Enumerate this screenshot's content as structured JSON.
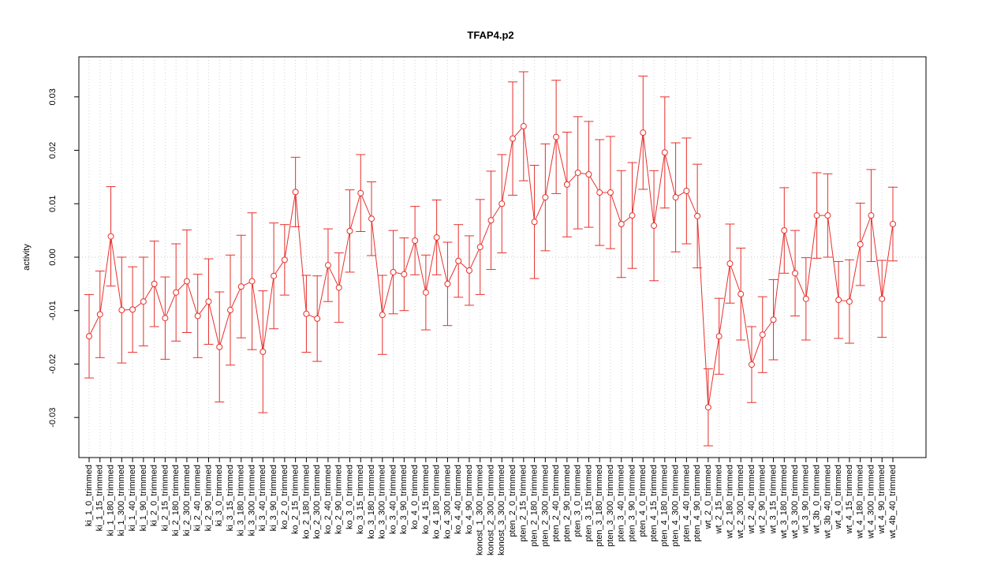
{
  "chart_data": {
    "type": "line",
    "title": "TFAP4.p2",
    "y_label": "activity",
    "categories": [
      "ki_1_0_trimmed",
      "ki_1_15_trimmed",
      "ki_1_180_trimmed",
      "ki_1_300_trimmed",
      "ki_1_40_trimmed",
      "ki_1_90_trimmed",
      "ki_2_0_trimmed",
      "ki_2_15_trimmed",
      "ki_2_180_trimmed",
      "ki_2_300_trimmed",
      "ki_2_40_trimmed",
      "ki_2_90_trimmed",
      "ki_3_0_trimmed",
      "ki_3_15_trimmed",
      "ki_3_180_trimmed",
      "ki_3_300_trimmed",
      "ki_3_40_trimmed",
      "ki_3_90_trimmed",
      "ko_2_0_trimmed",
      "ko_2_15_trimmed",
      "ko_2_180_trimmed",
      "ko_2_300_trimmed",
      "ko_2_40_trimmed",
      "ko_2_90_trimmed",
      "ko_3_0_trimmed",
      "ko_3_15_trimmed",
      "ko_3_180_trimmed",
      "ko_3_300_trimmed",
      "ko_3_40_trimmed",
      "ko_3_90_trimmed",
      "ko_4_0_trimmed",
      "ko_4_15_trimmed",
      "ko_4_180_trimmed",
      "ko_4_300_trimmed",
      "ko_4_40_trimmed",
      "ko_4_90_trimmed",
      "konost_1_300_trimmed",
      "konost_2_300_trimmed",
      "konost_3_300_trimmed",
      "pten_2_0_trimmed",
      "pten_2_15_trimmed",
      "pten_2_180_trimmed",
      "pten_2_300_trimmed",
      "pten_2_40_trimmed",
      "pten_2_90_trimmed",
      "pten_3_0_trimmed",
      "pten_3_15_trimmed",
      "pten_3_180_trimmed",
      "pten_3_300_trimmed",
      "pten_3_40_trimmed",
      "pten_3_90_trimmed",
      "pten_4_0_trimmed",
      "pten_4_15_trimmed",
      "pten_4_180_trimmed",
      "pten_4_300_trimmed",
      "pten_4_40_trimmed",
      "pten_4_90_trimmed",
      "wt_2_0_trimmed",
      "wt_2_15_trimmed",
      "wt_2_180_trimmed",
      "wt_2_300_trimmed",
      "wt_2_40_trimmed",
      "wt_2_90_trimmed",
      "wt_3_15_trimmed",
      "wt_3_180_trimmed",
      "wt_3_300_trimmed",
      "wt_3_90_trimmed",
      "wt_3b_0_trimmed",
      "wt_3b_40_trimmed",
      "wt_4_0_trimmed",
      "wt_4_15_trimmed",
      "wt_4_180_trimmed",
      "wt_4_300_trimmed",
      "wt_4_90_trimmed",
      "wt_4b_40_trimmed"
    ],
    "series": [
      {
        "name": "TFAP4.p2",
        "color": "#e8302c",
        "values": [
          -0.0148,
          -0.0107,
          0.0039,
          -0.0099,
          -0.0098,
          -0.0083,
          -0.005,
          -0.0114,
          -0.0066,
          -0.0045,
          -0.011,
          -0.0083,
          -0.0168,
          -0.0099,
          -0.0055,
          -0.0045,
          -0.0177,
          -0.0035,
          -0.0005,
          0.0122,
          -0.0106,
          -0.0115,
          -0.0015,
          -0.0057,
          0.0049,
          0.012,
          0.0072,
          -0.0108,
          -0.0028,
          -0.0032,
          0.0031,
          -0.0066,
          0.0037,
          -0.005,
          -0.0007,
          -0.0025,
          0.0019,
          0.0069,
          0.01,
          0.0222,
          0.0245,
          0.0066,
          0.0112,
          0.0225,
          0.0136,
          0.0158,
          0.0155,
          0.0121,
          0.0121,
          0.0062,
          0.0078,
          0.0233,
          0.0059,
          0.0196,
          0.0112,
          0.0124,
          0.0077,
          -0.0281,
          -0.0148,
          -0.0012,
          -0.0069,
          -0.0201,
          -0.0145,
          -0.0117,
          0.005,
          -0.003,
          -0.0078,
          0.0078,
          0.0078,
          -0.008,
          -0.0083,
          0.0024,
          0.0078,
          -0.0078,
          0.0062
        ],
        "errors": [
          0.0078,
          0.0081,
          0.0093,
          0.0099,
          0.008,
          0.0083,
          0.008,
          0.0077,
          0.0091,
          0.0096,
          0.0078,
          0.008,
          0.0103,
          0.0103,
          0.0096,
          0.0128,
          0.0114,
          0.0099,
          0.0066,
          0.0065,
          0.0072,
          0.008,
          0.0068,
          0.0065,
          0.0077,
          0.0072,
          0.0069,
          0.0074,
          0.0078,
          0.0068,
          0.0064,
          0.007,
          0.007,
          0.0078,
          0.0068,
          0.0065,
          0.0089,
          0.0092,
          0.0092,
          0.0106,
          0.0102,
          0.0106,
          0.01,
          0.0106,
          0.0098,
          0.0105,
          0.0099,
          0.0099,
          0.0105,
          0.01,
          0.0099,
          0.0106,
          0.0103,
          0.0104,
          0.0102,
          0.0099,
          0.0097,
          0.0072,
          0.0071,
          0.0074,
          0.0086,
          0.0071,
          0.0071,
          0.0075,
          0.008,
          0.008,
          0.0077,
          0.008,
          0.0078,
          0.0072,
          0.0078,
          0.0077,
          0.0086,
          0.0072,
          0.0069
        ]
      }
    ],
    "ylim": [
      -0.0375,
      0.0375
    ],
    "yticks": [
      -0.03,
      -0.02,
      -0.01,
      {
        "value": 0,
        "label": "0.00"
      },
      0.01,
      0.02,
      0.03
    ],
    "reference_line": 0,
    "grid": true
  }
}
